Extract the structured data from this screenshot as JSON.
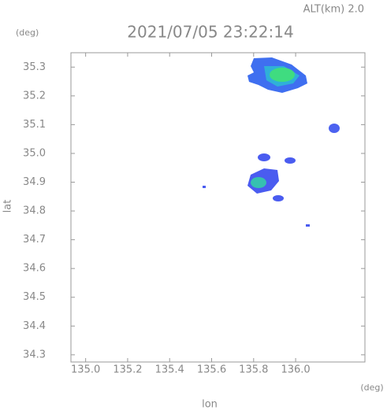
{
  "chart_data": {
    "type": "map",
    "title": "2021/07/05 23:22:14",
    "subtitle": "ALT(km) 2.0",
    "y_unit": "(deg)",
    "x_unit": "(deg)",
    "xlabel": "lon",
    "ylabel": "lat",
    "xlim": [
      134.93,
      136.33
    ],
    "ylim": [
      34.275,
      35.35
    ],
    "xticks": [
      {
        "value": 135,
        "label": "135.0"
      },
      135.2,
      135.4,
      135.6,
      135.8,
      {
        "value": 136,
        "label": "136.0"
      }
    ],
    "yticks": [
      34.3,
      34.4,
      34.5,
      34.6,
      34.7,
      34.8,
      34.9,
      {
        "value": 35,
        "label": "35.0"
      },
      35.1,
      35.2,
      35.3
    ]
  }
}
